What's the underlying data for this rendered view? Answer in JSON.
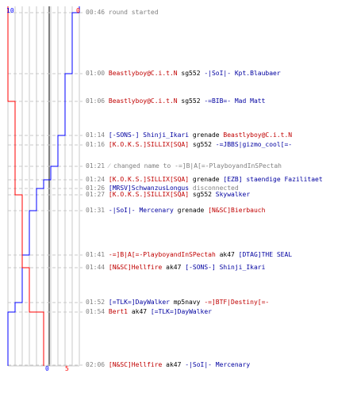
{
  "colors": {
    "team_a": "#0000ff",
    "team_b": "#ff0000",
    "grid": "#c8c8c8",
    "dash": "#c8c8c8",
    "time": "#808080",
    "red_text": "#c00000",
    "blue_text": "#0000a0"
  },
  "scores": {
    "blue_start": "10",
    "red_start": "0",
    "blue_end": "0",
    "red_end": "5"
  },
  "events": [
    {
      "time": "00:46",
      "parts": [
        {
          "text": "round started",
          "color": "gray"
        }
      ]
    },
    {
      "time": "01:00",
      "parts": [
        {
          "text": "Beastlyboy@C.i.t.N",
          "color": "red"
        },
        {
          "text": " sg552 ",
          "color": "blk"
        },
        {
          "text": "-|SoI|- Kpt.Blaubaer",
          "color": "blue"
        }
      ]
    },
    {
      "time": "01:06",
      "parts": [
        {
          "text": "Beastlyboy@C.i.t.N",
          "color": "red"
        },
        {
          "text": " sg552 ",
          "color": "blk"
        },
        {
          "text": "-=BIB=- Mad Matt",
          "color": "blue"
        }
      ]
    },
    {
      "time": "01:14",
      "parts": [
        {
          "text": "[-SONS-] Shinji_Ikari",
          "color": "blue"
        },
        {
          "text": " grenade ",
          "color": "blk"
        },
        {
          "text": "Beastlyboy@C.i.t.N",
          "color": "red"
        }
      ]
    },
    {
      "time": "01:16",
      "parts": [
        {
          "text": "[K.O.K.S.]SILLIX[SQA]",
          "color": "red"
        },
        {
          "text": " sg552 ",
          "color": "blk"
        },
        {
          "text": "-=JBBS|gizmo_cool[=-",
          "color": "blue"
        }
      ]
    },
    {
      "time": "01:21",
      "parts": [
        {
          "text": "⁄ changed name to -=]B|A[=-PlayboyandInSPectah",
          "color": "gray"
        }
      ]
    },
    {
      "time": "01:24",
      "parts": [
        {
          "text": "[K.O.K.S.]SILLIX[SQA]",
          "color": "red"
        },
        {
          "text": " grenade ",
          "color": "blk"
        },
        {
          "text": "[EZB] staendige Fazilitaet",
          "color": "blue"
        }
      ]
    },
    {
      "time": "01:26",
      "parts": [
        {
          "text": "[MRSV]SchwanzusLongus",
          "color": "blue"
        },
        {
          "text": " disconnected",
          "color": "gray"
        }
      ]
    },
    {
      "time": "01:27",
      "parts": [
        {
          "text": "[K.O.K.S.]SILLIX[SQA]",
          "color": "red"
        },
        {
          "text": " sg552 ",
          "color": "blk"
        },
        {
          "text": "Skywalker",
          "color": "blue"
        }
      ]
    },
    {
      "time": "01:31",
      "parts": [
        {
          "text": "-|SoI|- Mercenary",
          "color": "blue"
        },
        {
          "text": " grenade ",
          "color": "blk"
        },
        {
          "text": "[N&SC]Bierbauch",
          "color": "red"
        }
      ]
    },
    {
      "time": "01:41",
      "parts": [
        {
          "text": "-=]B|A[=-PlayboyandInSPectah",
          "color": "red"
        },
        {
          "text": " ak47 ",
          "color": "blk"
        },
        {
          "text": "[DTAG]THE SEAL",
          "color": "blue"
        }
      ]
    },
    {
      "time": "01:44",
      "parts": [
        {
          "text": "[N&SC]Hellfire",
          "color": "red"
        },
        {
          "text": " ak47 ",
          "color": "blk"
        },
        {
          "text": "[-SONS-] Shinji_Ikari",
          "color": "blue"
        }
      ]
    },
    {
      "time": "01:52",
      "parts": [
        {
          "text": "[=TLK=]DayWalker",
          "color": "blue"
        },
        {
          "text": " mp5navy ",
          "color": "blk"
        },
        {
          "text": "-=]BTF|Destiny[=-",
          "color": "red"
        }
      ]
    },
    {
      "time": "01:54",
      "parts": [
        {
          "text": "Bert1",
          "color": "red"
        },
        {
          "text": " ak47 ",
          "color": "blk"
        },
        {
          "text": "[=TLK=]DayWalker",
          "color": "blue"
        }
      ]
    },
    {
      "time": "02:06",
      "parts": [
        {
          "text": "[N&SC]Hellfire",
          "color": "red"
        },
        {
          "text": " ak47 ",
          "color": "blk"
        },
        {
          "text": "-|SoI|- Mercenary",
          "color": "blue"
        }
      ]
    }
  ],
  "chart_data": {
    "type": "line",
    "x_axis": "players alive",
    "series": [
      {
        "team": "blue",
        "values": [
          10,
          9,
          8,
          8,
          7,
          7,
          6,
          5,
          4,
          4,
          3,
          2,
          2,
          1,
          0
        ]
      },
      {
        "team": "red",
        "values": [
          0,
          0,
          0,
          1,
          1,
          1,
          1,
          1,
          1,
          2,
          2,
          2,
          3,
          3,
          5
        ]
      }
    ]
  }
}
